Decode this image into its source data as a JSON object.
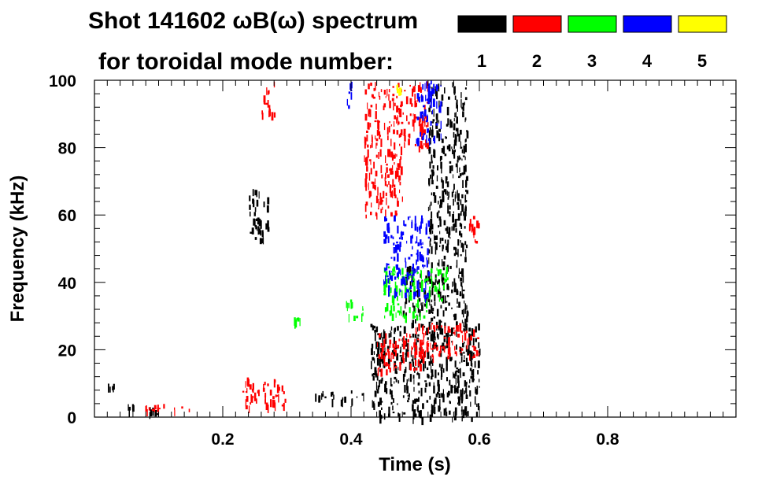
{
  "chart_data": {
    "type": "heatmap",
    "title_line1": "Shot 141602 ωB(ω) spectrum",
    "title_line2": "for toroidal mode number:",
    "xlabel": "Time (s)",
    "ylabel": "Frequency (kHz)",
    "xlim": [
      0.0,
      1.0
    ],
    "ylim": [
      0,
      100
    ],
    "x_ticks": [
      0.2,
      0.4,
      0.6,
      0.8
    ],
    "x_tick_labels": [
      "0.2",
      "0.4",
      "0.6",
      "0.8"
    ],
    "y_ticks": [
      0,
      20,
      40,
      60,
      80,
      100
    ],
    "y_tick_labels": [
      "0",
      "20",
      "40",
      "60",
      "80",
      "100"
    ],
    "legend": [
      {
        "label": "1",
        "color": "#000000"
      },
      {
        "label": "2",
        "color": "#ff0000"
      },
      {
        "label": "3",
        "color": "#00ff00"
      },
      {
        "label": "4",
        "color": "#0000ff"
      },
      {
        "label": "5",
        "color": "#ffff00"
      }
    ],
    "regions": [
      {
        "mode": 1,
        "t": [
          0.02,
          0.03
        ],
        "f": [
          8,
          10
        ]
      },
      {
        "mode": 1,
        "t": [
          0.05,
          0.06
        ],
        "f": [
          2,
          4
        ]
      },
      {
        "mode": 1,
        "t": [
          0.08,
          0.1
        ],
        "f": [
          1,
          3
        ]
      },
      {
        "mode": 1,
        "t": [
          0.24,
          0.27
        ],
        "f": [
          53,
          68
        ]
      },
      {
        "mode": 1,
        "t": [
          0.34,
          0.42
        ],
        "f": [
          5,
          8
        ]
      },
      {
        "mode": 1,
        "t": [
          0.43,
          0.6
        ],
        "f": [
          0,
          28
        ]
      },
      {
        "mode": 1,
        "t": [
          0.48,
          0.58
        ],
        "f": [
          28,
          45
        ]
      },
      {
        "mode": 1,
        "t": [
          0.52,
          0.58
        ],
        "f": [
          45,
          100
        ]
      },
      {
        "mode": 2,
        "t": [
          0.07,
          0.16
        ],
        "f": [
          2,
          4
        ]
      },
      {
        "mode": 2,
        "t": [
          0.23,
          0.3
        ],
        "f": [
          3,
          12
        ]
      },
      {
        "mode": 2,
        "t": [
          0.26,
          0.28
        ],
        "f": [
          90,
          100
        ]
      },
      {
        "mode": 2,
        "t": [
          0.42,
          0.48
        ],
        "f": [
          60,
          100
        ]
      },
      {
        "mode": 2,
        "t": [
          0.44,
          0.52
        ],
        "f": [
          14,
          25
        ]
      },
      {
        "mode": 2,
        "t": [
          0.5,
          0.6
        ],
        "f": [
          18,
          28
        ]
      },
      {
        "mode": 2,
        "t": [
          0.58,
          0.6
        ],
        "f": [
          52,
          60
        ]
      },
      {
        "mode": 2,
        "t": [
          0.48,
          0.52
        ],
        "f": [
          80,
          100
        ]
      },
      {
        "mode": 3,
        "t": [
          0.31,
          0.32
        ],
        "f": [
          28,
          30
        ]
      },
      {
        "mode": 3,
        "t": [
          0.39,
          0.42
        ],
        "f": [
          30,
          35
        ]
      },
      {
        "mode": 3,
        "t": [
          0.45,
          0.52
        ],
        "f": [
          30,
          45
        ]
      },
      {
        "mode": 3,
        "t": [
          0.52,
          0.55
        ],
        "f": [
          35,
          45
        ]
      },
      {
        "mode": 4,
        "t": [
          0.39,
          0.4
        ],
        "f": [
          92,
          100
        ]
      },
      {
        "mode": 4,
        "t": [
          0.45,
          0.52
        ],
        "f": [
          36,
          60
        ]
      },
      {
        "mode": 4,
        "t": [
          0.5,
          0.54
        ],
        "f": [
          82,
          100
        ]
      },
      {
        "mode": 5,
        "t": [
          0.47,
          0.48
        ],
        "f": [
          97,
          99
        ]
      }
    ]
  }
}
